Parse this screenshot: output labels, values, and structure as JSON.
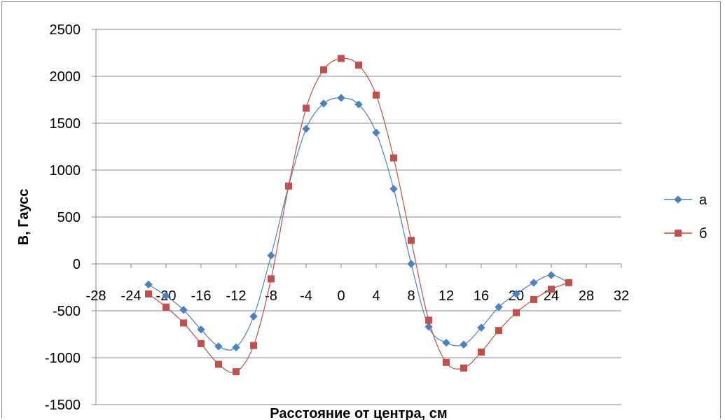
{
  "chart_data": {
    "type": "scatter",
    "smooth_lines": true,
    "title": "",
    "xlabel": "Расстояние от центра, см",
    "ylabel": "В, Гаусс",
    "xlim": [
      -28,
      32
    ],
    "ylim": [
      -1500,
      2500
    ],
    "x_ticks": [
      -28,
      -24,
      -20,
      -16,
      -12,
      -8,
      -4,
      0,
      4,
      8,
      12,
      16,
      20,
      24,
      28,
      32
    ],
    "y_ticks": [
      -1500,
      -1000,
      -500,
      0,
      500,
      1000,
      1500,
      2000,
      2500
    ],
    "grid": "horizontal",
    "legend_position": "right",
    "series": [
      {
        "name": "а",
        "color": "#4F81BD",
        "marker": "diamond",
        "x": [
          -22,
          -20,
          -18,
          -16,
          -14,
          -12,
          -10,
          -8,
          -6,
          -4,
          -2,
          0,
          2,
          4,
          6,
          8,
          10,
          12,
          14,
          16,
          18,
          20,
          22,
          24,
          26
        ],
        "y": [
          -220,
          -340,
          -490,
          -700,
          -880,
          -890,
          -560,
          90,
          830,
          1440,
          1710,
          1770,
          1700,
          1400,
          800,
          0,
          -670,
          -840,
          -860,
          -680,
          -460,
          -320,
          -200,
          -120,
          -200
        ]
      },
      {
        "name": "б",
        "color": "#C0504D",
        "marker": "square",
        "x": [
          -22,
          -20,
          -18,
          -16,
          -14,
          -12,
          -10,
          -8,
          -6,
          -4,
          -2,
          0,
          2,
          4,
          6,
          8,
          10,
          12,
          14,
          16,
          18,
          20,
          22,
          24,
          26
        ],
        "y": [
          -320,
          -460,
          -630,
          -850,
          -1070,
          -1150,
          -870,
          -160,
          830,
          1660,
          2070,
          2190,
          2120,
          1800,
          1130,
          250,
          -600,
          -1050,
          -1110,
          -940,
          -710,
          -520,
          -380,
          -270,
          -200
        ]
      }
    ]
  }
}
